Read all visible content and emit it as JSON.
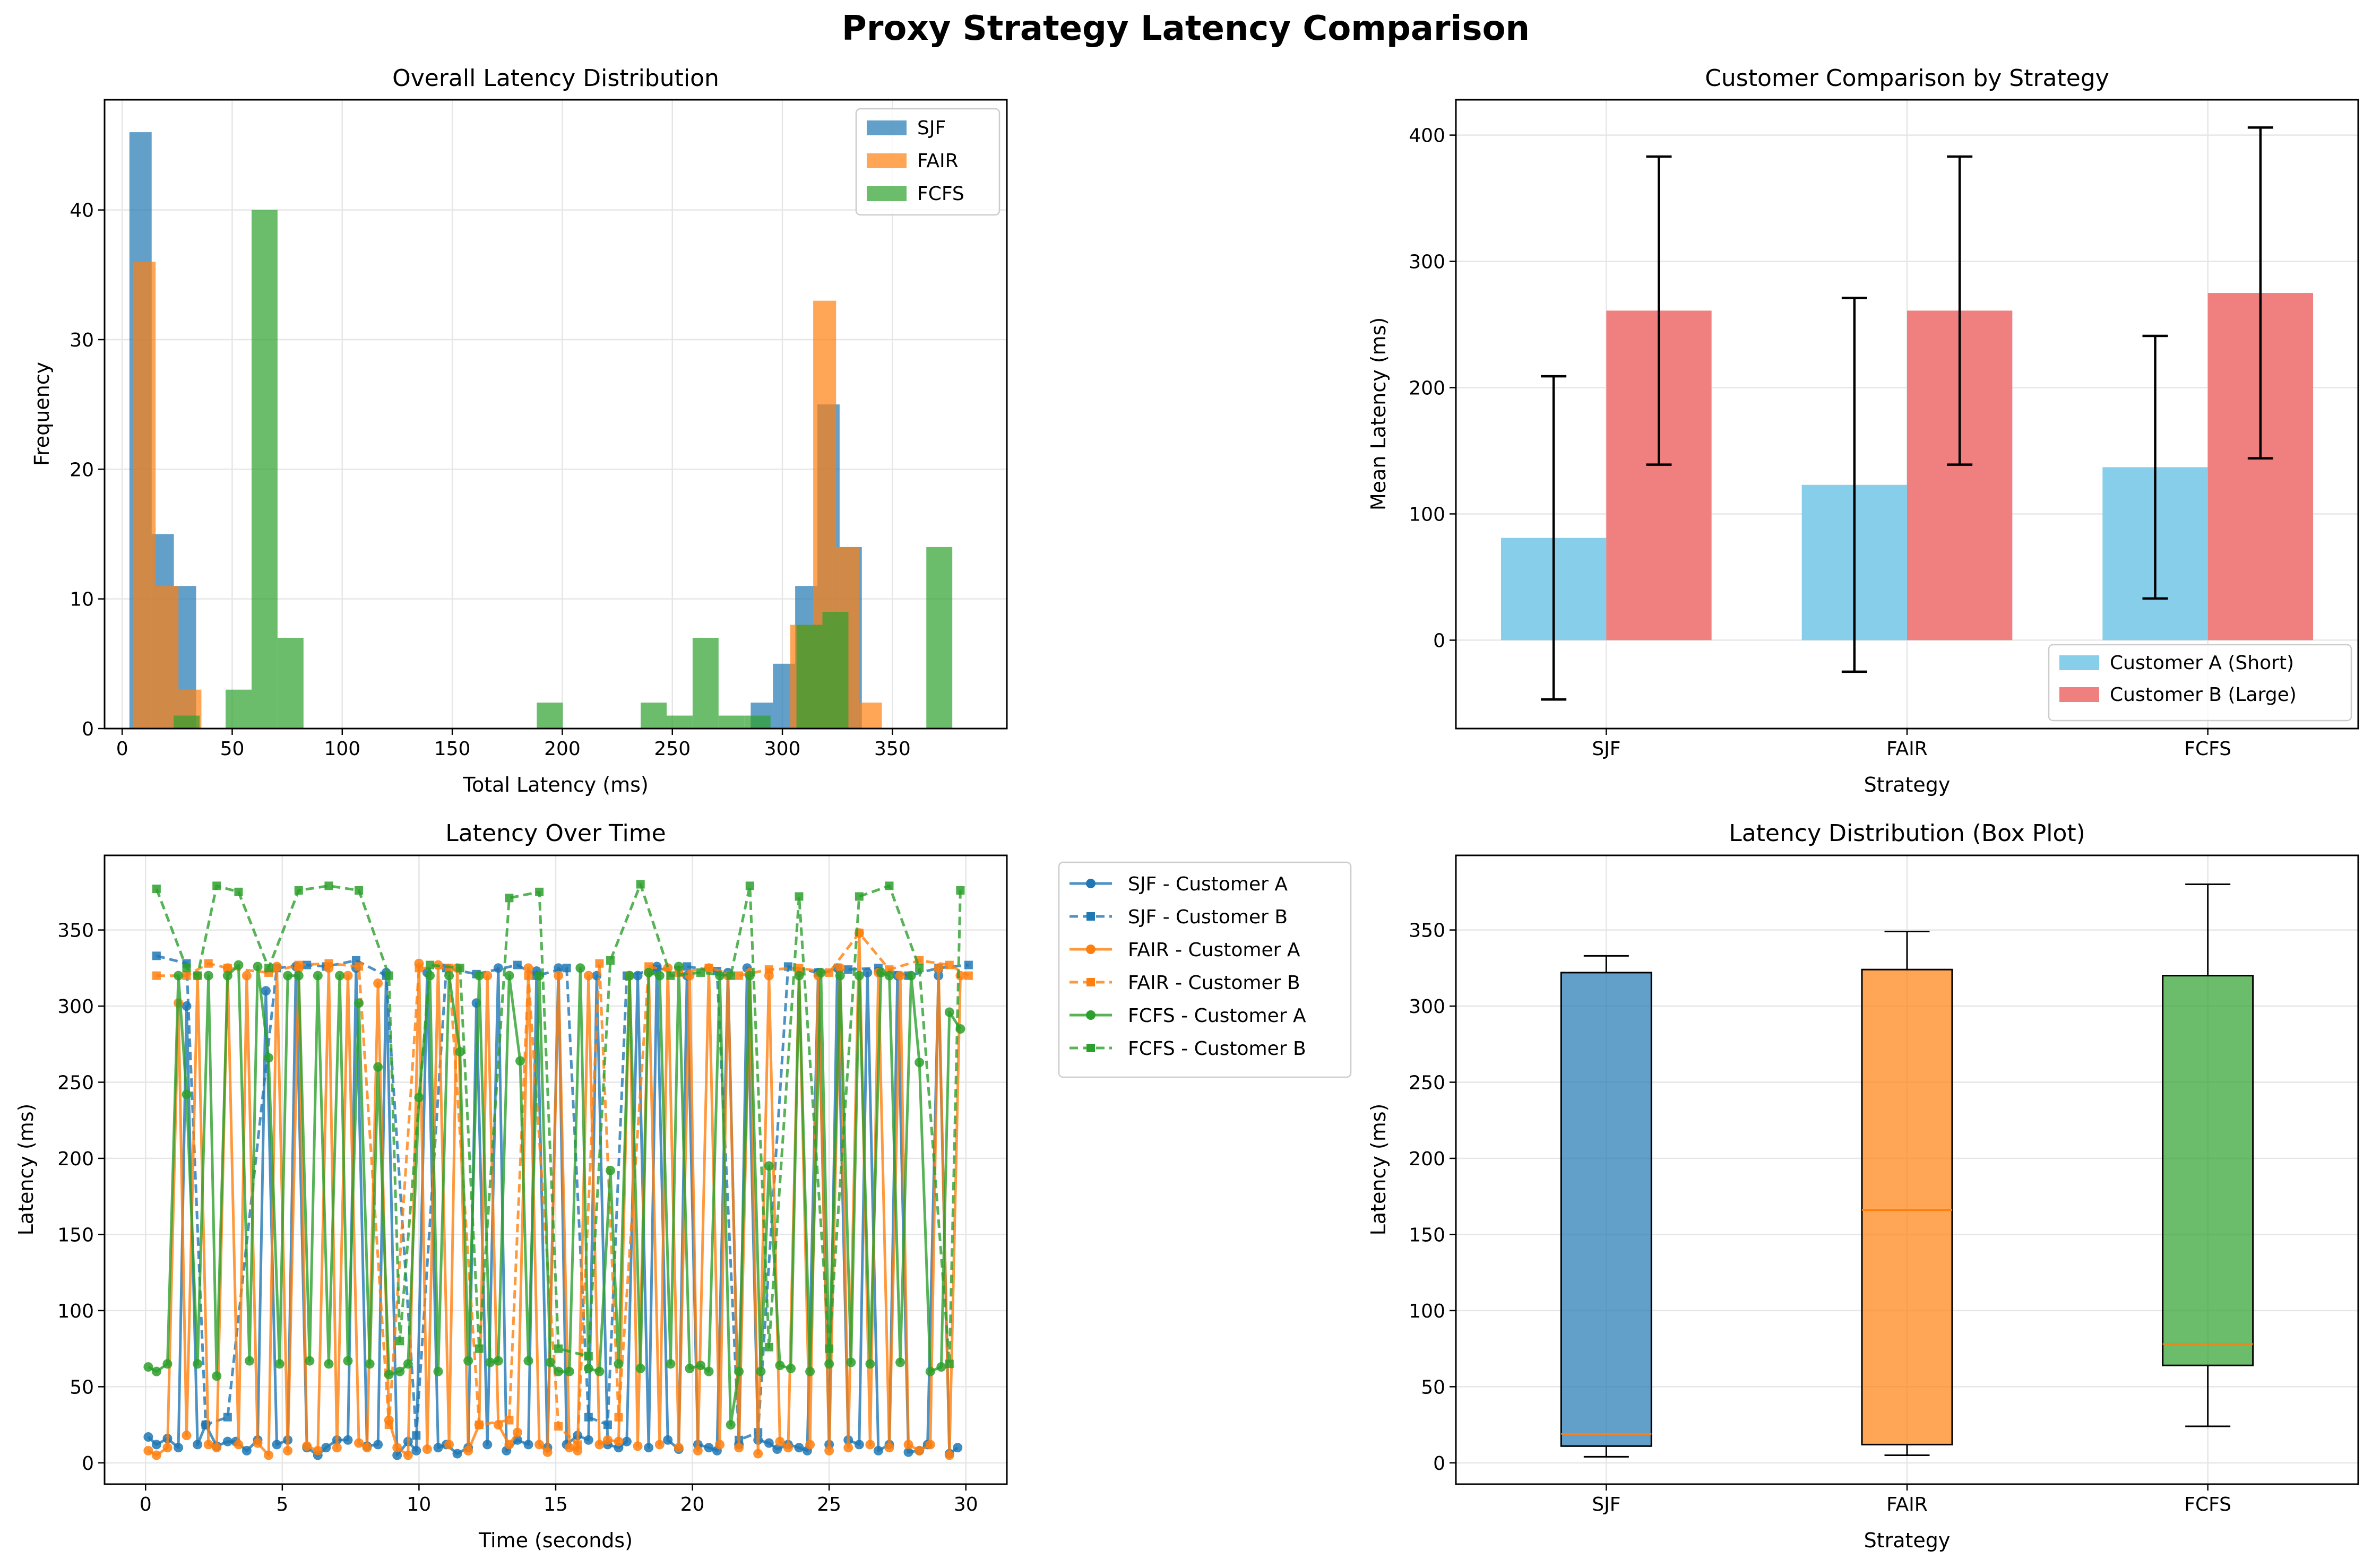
{
  "figure": {
    "title": "Proxy Strategy Latency Comparison"
  },
  "colors": {
    "SJF": "#1f77b4",
    "FAIR": "#ff7f0e",
    "FCFS": "#2ca02c",
    "customer_a": "#87ceeb",
    "customer_b": "#f08080",
    "grid": "#e6e6e6",
    "median": "#ff7f0e"
  },
  "chart_data": [
    {
      "id": "hist",
      "type": "bar",
      "subtype": "histogram",
      "title": "Overall Latency Distribution",
      "xlabel": "Total Latency (ms)",
      "ylabel": "Frequency",
      "xlim": [
        -8,
        402
      ],
      "ylim": [
        0,
        48.5
      ],
      "xticks": [
        0,
        50,
        100,
        150,
        200,
        250,
        300,
        350
      ],
      "yticks": [
        0,
        10,
        20,
        30,
        40
      ],
      "grid": true,
      "legend": "top-right",
      "series": [
        {
          "name": "SJF",
          "bins": [
            [
              3.3,
              13.4,
              46
            ],
            [
              13.4,
              23.5,
              15
            ],
            [
              23.5,
              33.6,
              11
            ],
            [
              285.6,
              295.7,
              2
            ],
            [
              295.7,
              305.8,
              5
            ],
            [
              305.8,
              315.9,
              11
            ],
            [
              315.9,
              326,
              25
            ],
            [
              326,
              336.1,
              14
            ]
          ]
        },
        {
          "name": "FAIR",
          "bins": [
            [
              4.8,
              15.2,
              36
            ],
            [
              15.2,
              25.6,
              11
            ],
            [
              25.6,
              36,
              3
            ],
            [
              303.6,
              314,
              8
            ],
            [
              314,
              324.4,
              33
            ],
            [
              324.4,
              334.8,
              14
            ],
            [
              334.8,
              345.2,
              2
            ]
          ]
        },
        {
          "name": "FCFS",
          "bins": [
            [
              23.4,
              35.2,
              1
            ],
            [
              47,
              58.8,
              3
            ],
            [
              58.8,
              70.6,
              40
            ],
            [
              70.6,
              82.4,
              7
            ],
            [
              188.4,
              200.2,
              2
            ],
            [
              235.6,
              247.4,
              2
            ],
            [
              247.4,
              259.2,
              1
            ],
            [
              259.2,
              271,
              7
            ],
            [
              271,
              282.8,
              1
            ],
            [
              282.8,
              294.6,
              1
            ],
            [
              306.4,
              318.2,
              8
            ],
            [
              318.2,
              330,
              9
            ],
            [
              365.4,
              377.2,
              14
            ]
          ]
        }
      ]
    },
    {
      "id": "barcmp",
      "type": "bar",
      "title": "Customer Comparison by Strategy",
      "xlabel": "Strategy",
      "ylabel": "Mean Latency (ms)",
      "ylim": [
        -70,
        428
      ],
      "yticks": [
        0,
        100,
        200,
        300,
        400
      ],
      "grid": true,
      "legend": "bottom-right",
      "categories": [
        "SJF",
        "FAIR",
        "FCFS"
      ],
      "series": [
        {
          "name": "Customer A (Short)",
          "values": [
            81,
            123,
            137
          ],
          "errors": [
            128,
            148,
            104
          ]
        },
        {
          "name": "Customer B (Large)",
          "values": [
            261,
            261,
            275
          ],
          "errors": [
            122,
            122,
            131
          ]
        }
      ]
    },
    {
      "id": "timeseries",
      "type": "line",
      "title": "Latency Over Time",
      "xlabel": "Time (seconds)",
      "ylabel": "Latency (ms)",
      "xlim": [
        -1.5,
        31.5
      ],
      "ylim": [
        -14,
        399
      ],
      "xticks": [
        0,
        5,
        10,
        15,
        20,
        25,
        30
      ],
      "yticks": [
        0,
        50,
        100,
        150,
        200,
        250,
        300,
        350
      ],
      "grid": true,
      "legend": "outside-right",
      "series": [
        {
          "name": "SJF - Customer A",
          "strategy": "SJF",
          "style": "solid",
          "marker": "circle",
          "x": [
            0.1,
            0.4,
            0.8,
            1.2,
            1.5,
            1.9,
            2.2,
            2.6,
            3.0,
            3.3,
            3.7,
            4.1,
            4.4,
            4.8,
            5.2,
            5.5,
            5.9,
            6.3,
            6.6,
            7.0,
            7.4,
            7.7,
            8.1,
            8.5,
            8.8,
            9.2,
            9.6,
            9.9,
            10.3,
            10.7,
            11.0,
            11.4,
            11.8,
            12.1,
            12.5,
            12.9,
            13.2,
            13.6,
            14.0,
            14.3,
            14.7,
            15.1,
            15.4,
            15.8,
            16.2,
            16.5,
            16.9,
            17.3,
            17.6,
            18.0,
            18.4,
            18.7,
            19.1,
            19.5,
            19.8,
            20.2,
            20.6,
            20.9,
            21.3,
            21.7,
            22.0,
            22.4,
            22.8,
            23.1,
            23.5,
            23.9,
            24.2,
            24.6,
            25.0,
            25.3,
            25.7,
            26.1,
            26.4,
            26.8,
            27.2,
            27.5,
            27.9,
            28.3,
            28.6,
            29.0,
            29.4,
            29.7
          ],
          "y": [
            17,
            12,
            16,
            10,
            300,
            12,
            25,
            11,
            14,
            14,
            8,
            15,
            310,
            12,
            15,
            326,
            10,
            5,
            10,
            15,
            15,
            325,
            11,
            12,
            322,
            5,
            14,
            8,
            322,
            10,
            12,
            6,
            10,
            302,
            12,
            325,
            8,
            15,
            12,
            323,
            10,
            325,
            12,
            18,
            15,
            320,
            12,
            10,
            14,
            320,
            10,
            326,
            15,
            9,
            320,
            12,
            10,
            8,
            322,
            12,
            325,
            15,
            13,
            9,
            12,
            10,
            8,
            322,
            12,
            325,
            15,
            12,
            322,
            8,
            12,
            320,
            7,
            8,
            12,
            320,
            6,
            10
          ]
        },
        {
          "name": "SJF - Customer B",
          "strategy": "SJF",
          "style": "dashed",
          "marker": "square",
          "x": [
            0.4,
            1.5,
            2.2,
            3.0,
            4.8,
            5.9,
            6.6,
            7.7,
            8.8,
            9.9,
            11.0,
            12.1,
            13.6,
            14.3,
            15.4,
            16.2,
            16.9,
            17.6,
            18.7,
            19.8,
            20.9,
            21.7,
            22.4,
            23.5,
            24.6,
            25.7,
            26.8,
            27.9,
            29.0,
            30.1
          ],
          "y": [
            333,
            328,
            25,
            30,
            325,
            327,
            326,
            330,
            320,
            18,
            325,
            321,
            327,
            320,
            325,
            30,
            25,
            320,
            324,
            326,
            323,
            15,
            20,
            326,
            322,
            324,
            325,
            320,
            325,
            327
          ]
        },
        {
          "name": "FAIR - Customer A",
          "strategy": "FAIR",
          "style": "solid",
          "marker": "circle",
          "x": [
            0.1,
            0.4,
            0.8,
            1.2,
            1.5,
            1.9,
            2.3,
            2.6,
            3.0,
            3.4,
            3.7,
            4.1,
            4.5,
            4.8,
            5.2,
            5.6,
            5.9,
            6.3,
            6.7,
            7.0,
            7.4,
            7.8,
            8.1,
            8.5,
            8.9,
            9.2,
            9.6,
            10.0,
            10.3,
            10.7,
            11.1,
            11.4,
            11.8,
            12.2,
            12.5,
            12.9,
            13.3,
            13.6,
            14.0,
            14.4,
            14.7,
            15.1,
            15.5,
            15.8,
            16.2,
            16.6,
            16.9,
            17.3,
            17.7,
            18.0,
            18.4,
            18.8,
            19.1,
            19.5,
            19.9,
            20.2,
            20.6,
            21.0,
            21.3,
            21.7,
            22.1,
            22.4,
            22.8,
            23.2,
            23.5,
            23.9,
            24.3,
            24.6,
            25.0,
            25.4,
            25.7,
            26.1,
            26.5,
            26.8,
            27.2,
            27.6,
            27.9,
            28.3,
            28.7,
            29.0,
            29.4,
            29.8
          ],
          "y": [
            8,
            5,
            10,
            302,
            18,
            320,
            12,
            10,
            325,
            12,
            320,
            13,
            5,
            326,
            8,
            325,
            11,
            8,
            325,
            10,
            320,
            13,
            10,
            315,
            28,
            10,
            5,
            328,
            9,
            327,
            12,
            325,
            8,
            25,
            320,
            25,
            12,
            20,
            325,
            12,
            7,
            320,
            10,
            8,
            320,
            12,
            15,
            14,
            320,
            11,
            322,
            12,
            325,
            10,
            320,
            8,
            325,
            12,
            320,
            10,
            322,
            6,
            320,
            14,
            10,
            322,
            12,
            320,
            8,
            325,
            10,
            348,
            12,
            322,
            10,
            320,
            12,
            8,
            12,
            325,
            5,
            320
          ]
        },
        {
          "name": "FAIR - Customer B",
          "strategy": "FAIR",
          "style": "dashed",
          "marker": "square",
          "x": [
            0.4,
            1.5,
            2.3,
            3.0,
            4.5,
            5.6,
            6.7,
            7.8,
            8.9,
            10.0,
            11.1,
            12.2,
            13.3,
            14.0,
            15.1,
            15.8,
            16.6,
            17.3,
            18.4,
            19.5,
            20.6,
            21.7,
            22.8,
            23.9,
            25.0,
            26.1,
            27.2,
            28.3,
            29.4,
            30.1
          ],
          "y": [
            320,
            320,
            328,
            325,
            322,
            327,
            328,
            326,
            25,
            325,
            325,
            25,
            28,
            320,
            24,
            12,
            328,
            30,
            326,
            322,
            325,
            320,
            324,
            325,
            322,
            348,
            324,
            330,
            327,
            320
          ]
        },
        {
          "name": "FCFS - Customer A",
          "strategy": "FCFS",
          "style": "solid",
          "marker": "circle",
          "x": [
            0.1,
            0.4,
            0.8,
            1.2,
            1.5,
            1.9,
            2.3,
            2.6,
            3.0,
            3.4,
            3.8,
            4.1,
            4.5,
            4.9,
            5.2,
            5.6,
            6.0,
            6.3,
            6.7,
            7.1,
            7.4,
            7.8,
            8.2,
            8.5,
            8.9,
            9.3,
            9.6,
            10.0,
            10.4,
            10.7,
            11.1,
            11.5,
            11.8,
            12.2,
            12.6,
            12.9,
            13.3,
            13.7,
            14.0,
            14.4,
            14.8,
            15.1,
            15.5,
            15.9,
            16.2,
            16.6,
            17.0,
            17.3,
            17.7,
            18.1,
            18.4,
            18.8,
            19.2,
            19.5,
            19.9,
            20.3,
            20.6,
            21.0,
            21.4,
            21.7,
            22.1,
            22.5,
            22.8,
            23.2,
            23.6,
            23.9,
            24.3,
            24.7,
            25.0,
            25.4,
            25.8,
            26.1,
            26.5,
            26.9,
            27.2,
            27.6,
            28.0,
            28.3,
            28.7,
            29.1,
            29.4,
            29.8
          ],
          "y": [
            63,
            60,
            65,
            320,
            242,
            65,
            320,
            57,
            320,
            327,
            67,
            326,
            266,
            65,
            320,
            320,
            67,
            320,
            65,
            320,
            67,
            302,
            65,
            260,
            58,
            60,
            65,
            240,
            320,
            60,
            320,
            270,
            67,
            320,
            66,
            67,
            320,
            264,
            67,
            320,
            66,
            60,
            60,
            325,
            62,
            60,
            192,
            65,
            320,
            62,
            322,
            320,
            65,
            326,
            62,
            64,
            60,
            320,
            25,
            60,
            320,
            60,
            195,
            64,
            62,
            320,
            60,
            322,
            65,
            320,
            66,
            320,
            65,
            322,
            320,
            66,
            320,
            263,
            60,
            63,
            296,
            285
          ]
        },
        {
          "name": "FCFS - Customer B",
          "strategy": "FCFS",
          "style": "dashed",
          "marker": "square",
          "x": [
            0.4,
            1.5,
            1.9,
            2.6,
            3.4,
            4.5,
            5.6,
            6.7,
            7.8,
            8.9,
            9.3,
            10.4,
            11.5,
            12.2,
            13.3,
            14.4,
            15.1,
            16.2,
            17.0,
            18.1,
            19.2,
            20.3,
            21.4,
            22.1,
            22.8,
            23.9,
            25.0,
            26.1,
            27.2,
            28.3,
            29.4,
            29.8
          ],
          "y": [
            377,
            325,
            320,
            379,
            375,
            325,
            376,
            379,
            376,
            320,
            80,
            327,
            325,
            75,
            371,
            375,
            75,
            70,
            330,
            380,
            320,
            322,
            320,
            379,
            76,
            372,
            75,
            372,
            379,
            325,
            65,
            376
          ]
        }
      ]
    },
    {
      "id": "boxplot",
      "type": "box",
      "title": "Latency Distribution (Box Plot)",
      "xlabel": "Strategy",
      "ylabel": "Latency (ms)",
      "ylim": [
        -14,
        399
      ],
      "yticks": [
        0,
        50,
        100,
        150,
        200,
        250,
        300,
        350
      ],
      "grid": true,
      "categories": [
        "SJF",
        "FAIR",
        "FCFS"
      ],
      "boxes": [
        {
          "name": "SJF",
          "whisker_low": 4,
          "q1": 11,
          "median": 19,
          "q3": 322,
          "whisker_high": 333
        },
        {
          "name": "FAIR",
          "whisker_low": 5,
          "q1": 12,
          "median": 166,
          "q3": 324,
          "whisker_high": 349
        },
        {
          "name": "FCFS",
          "whisker_low": 24,
          "q1": 64,
          "median": 78,
          "q3": 320,
          "whisker_high": 380
        }
      ]
    }
  ]
}
